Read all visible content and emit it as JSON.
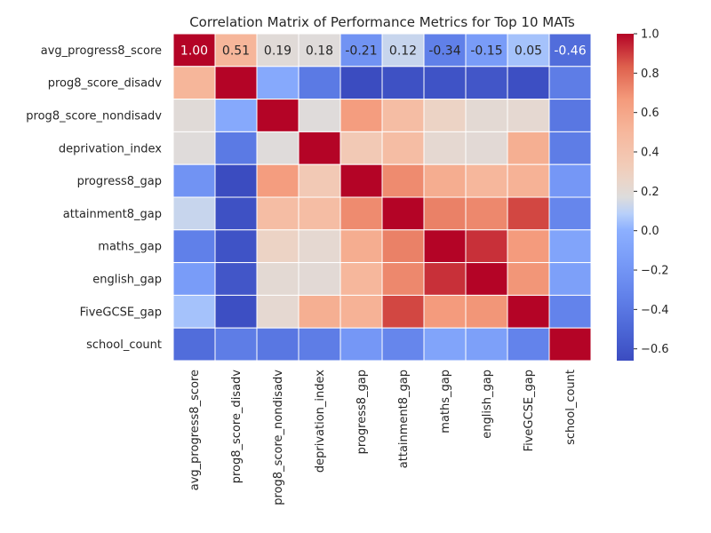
{
  "chart_data": {
    "type": "heatmap",
    "title": "Correlation Matrix of Performance Metrics for Top 10 MATs",
    "labels": [
      "avg_progress8_score",
      "prog8_score_disadv",
      "prog8_score_nondisadv",
      "deprivation_index",
      "progress8_gap",
      "attainment8_gap",
      "maths_gap",
      "english_gap",
      "FiveGCSE_gap",
      "school_count"
    ],
    "matrix": [
      [
        1.0,
        0.51,
        0.19,
        0.18,
        -0.21,
        0.12,
        -0.34,
        -0.15,
        0.05,
        -0.46
      ],
      [
        0.51,
        1.0,
        -0.05,
        -0.38,
        -0.66,
        -0.63,
        -0.62,
        -0.6,
        -0.64,
        -0.36
      ],
      [
        0.19,
        -0.05,
        1.0,
        0.18,
        0.65,
        0.45,
        0.27,
        0.21,
        0.22,
        -0.4
      ],
      [
        0.18,
        -0.38,
        0.18,
        1.0,
        0.35,
        0.45,
        0.22,
        0.2,
        0.55,
        -0.36
      ],
      [
        -0.21,
        -0.66,
        0.65,
        0.35,
        1.0,
        0.71,
        0.56,
        0.5,
        0.53,
        -0.18
      ],
      [
        0.12,
        -0.63,
        0.45,
        0.45,
        0.71,
        1.0,
        0.74,
        0.72,
        0.88,
        -0.3
      ],
      [
        -0.34,
        -0.62,
        0.27,
        0.22,
        0.56,
        0.74,
        1.0,
        0.92,
        0.66,
        -0.09
      ],
      [
        -0.15,
        -0.6,
        0.21,
        0.2,
        0.5,
        0.72,
        0.92,
        1.0,
        0.68,
        -0.12
      ],
      [
        0.05,
        -0.64,
        0.22,
        0.55,
        0.53,
        0.88,
        0.66,
        0.68,
        1.0,
        -0.32
      ],
      [
        -0.46,
        -0.36,
        -0.4,
        -0.36,
        -0.18,
        -0.3,
        -0.09,
        -0.12,
        -0.32,
        1.0
      ]
    ],
    "annotated_row": 0,
    "annotation_format": "0.00",
    "colormap": "coolwarm",
    "vmin": -0.66,
    "vmax": 1.0,
    "colorbar_ticks": [
      1.0,
      0.8,
      0.6,
      0.4,
      0.2,
      0.0,
      -0.2,
      -0.4,
      -0.6
    ],
    "colorbar_tick_labels": [
      "1.0",
      "0.8",
      "0.6",
      "0.4",
      "0.2",
      "0.0",
      "−0.2",
      "−0.4",
      "−0.6"
    ],
    "grid": true,
    "cell_border_color": "#ffffff"
  }
}
